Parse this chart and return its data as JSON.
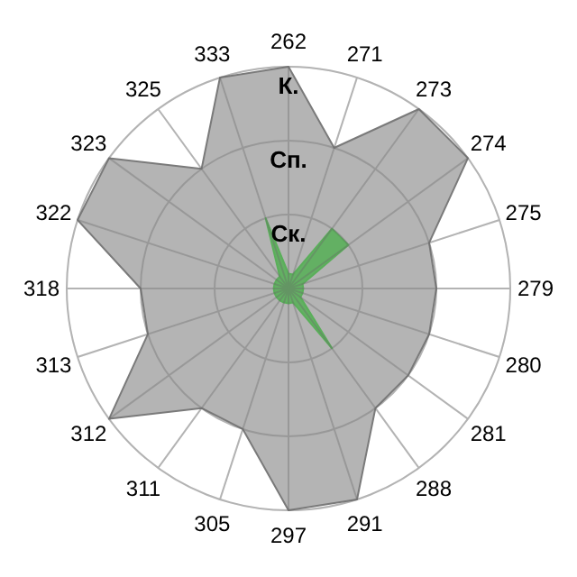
{
  "chart_data": {
    "type": "radar",
    "categories": [
      "262",
      "271",
      "273",
      "274",
      "275",
      "279",
      "280",
      "281",
      "288",
      "291",
      "297",
      "305",
      "311",
      "312",
      "313",
      "318",
      "322",
      "323",
      "325",
      "333"
    ],
    "ylim": [
      0,
      3
    ],
    "yticks": [
      {
        "value": 1,
        "label": "Ск."
      },
      {
        "value": 2,
        "label": "Сп."
      },
      {
        "value": 3,
        "label": "К."
      }
    ],
    "grid": true,
    "series": [
      {
        "color": "#b4b4b4",
        "values": [
          3,
          2,
          3,
          3,
          2,
          2,
          2,
          2,
          2,
          3,
          3,
          2,
          2,
          3,
          2,
          2,
          3,
          3,
          2,
          3
        ]
      },
      {
        "color": "#5aaf5a",
        "values": [
          0.2,
          0.2,
          1,
          1,
          0.2,
          0.2,
          0.2,
          0.2,
          1,
          0.2,
          0.2,
          0.2,
          0.2,
          0.2,
          0.2,
          0.2,
          0.2,
          0.2,
          0.2,
          1
        ]
      }
    ]
  }
}
